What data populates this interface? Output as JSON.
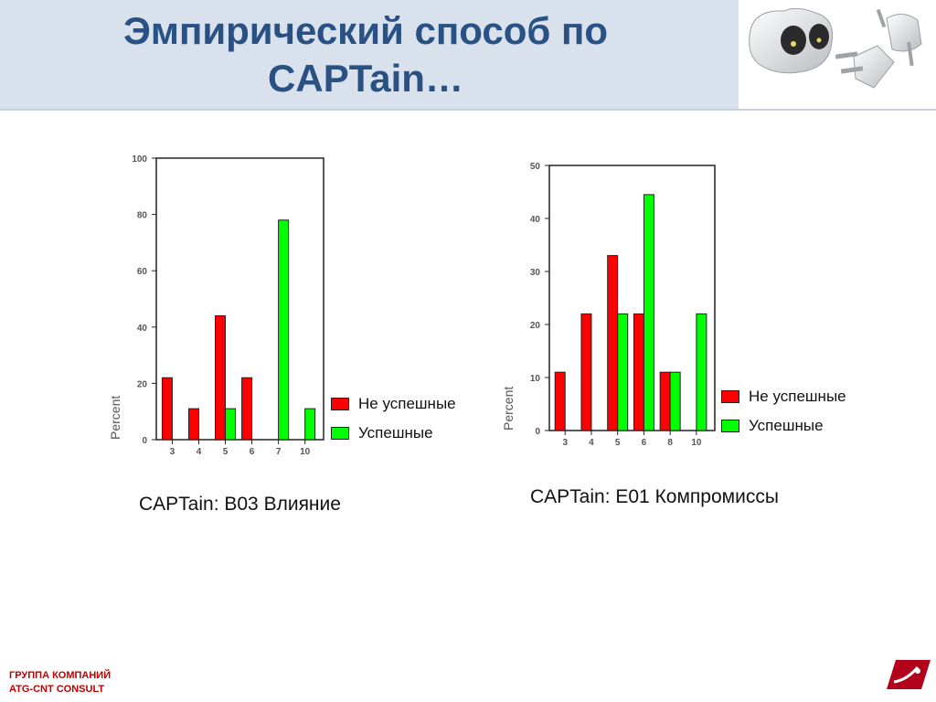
{
  "title": {
    "line1": "Эмпирический способ по",
    "line2": "CAPTain…"
  },
  "footer": {
    "line1": "ГРУППА КОМПАНИЙ",
    "line2": "ATG-CNT CONSULT"
  },
  "colors": {
    "unsuccessful": "#ff0000",
    "successful": "#00ff00"
  },
  "charts": [
    {
      "caption": "CAPTain: B03 Влияние",
      "legend": [
        "Не успешные",
        "Успешные"
      ]
    },
    {
      "caption": "CAPTain: E01 Компромиссы",
      "legend": [
        "Не успешные",
        "Успешные"
      ]
    }
  ],
  "chart_data": [
    {
      "type": "bar",
      "ylabel": "Percent",
      "xlabel": "",
      "categories": [
        "3",
        "4",
        "5",
        "6",
        "7",
        "10"
      ],
      "ylim": [
        0,
        100
      ],
      "yticks": [
        0,
        20,
        40,
        60,
        80,
        100
      ],
      "series": [
        {
          "name": "Не успешные",
          "values": [
            22,
            11,
            44,
            22,
            0,
            0
          ]
        },
        {
          "name": "Успешные",
          "values": [
            0,
            0,
            11,
            0,
            78,
            11
          ]
        }
      ],
      "legend_position": "right-bottom",
      "grid": false
    },
    {
      "type": "bar",
      "ylabel": "Percent",
      "xlabel": "",
      "categories": [
        "3",
        "4",
        "5",
        "6",
        "8",
        "10"
      ],
      "ylim": [
        0,
        50
      ],
      "yticks": [
        0,
        10,
        20,
        30,
        40,
        50
      ],
      "series": [
        {
          "name": "Не успешные",
          "values": [
            11,
            22,
            33,
            22,
            11,
            0
          ]
        },
        {
          "name": "Успешные",
          "values": [
            0,
            0,
            22,
            44.5,
            11,
            22
          ]
        }
      ],
      "legend_position": "right-bottom",
      "grid": false
    }
  ]
}
